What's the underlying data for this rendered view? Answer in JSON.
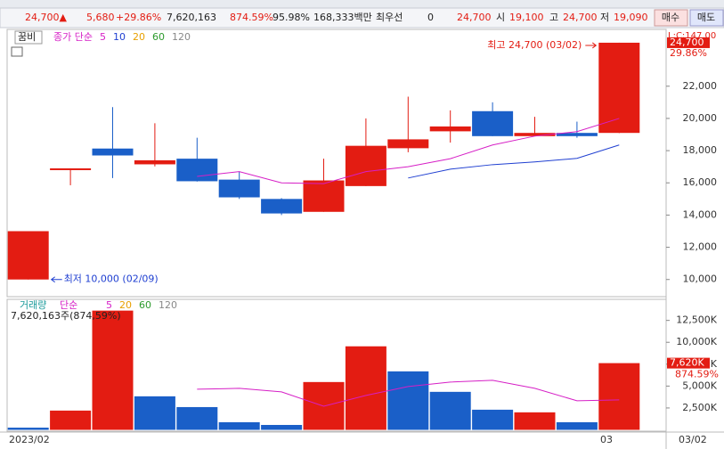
{
  "quote": {
    "price": "24,700▲",
    "change": "5,680",
    "change_pct": "+29.86%",
    "volume": "7,620,163",
    "volume_ratio": "874.59%",
    "turnover": "95.98%",
    "amount": "168,333백만",
    "best_label": "최우선",
    "best_value": "0",
    "best_price": "24,700",
    "open_label": "시",
    "open": "19,100",
    "high_label": "고",
    "high": "24,700",
    "low_label": "저",
    "low": "19,090",
    "buy": "매수",
    "sell": "매도"
  },
  "chart_data": [
    {
      "type": "candlestick",
      "name": "꿈비",
      "indicator": "종가 단순",
      "ma_periods": [
        "5",
        "10",
        "20",
        "60",
        "120"
      ],
      "ma_colors": [
        "#d61fc6",
        "#1f3fd1",
        "#e8a000",
        "#2c9a2c",
        "#888888"
      ],
      "up_color": "#e31c12",
      "down_color": "#1a5fc8",
      "open": [
        10000,
        16800,
        18130,
        17150,
        17500,
        16200,
        15000,
        14200,
        15800,
        18150,
        19200,
        20450,
        18900,
        19100,
        19100
      ],
      "high": [
        13000,
        16900,
        20700,
        19700,
        18800,
        16700,
        15050,
        17500,
        20000,
        21350,
        20500,
        21000,
        20100,
        19800,
        24700
      ],
      "low": [
        10000,
        15850,
        16300,
        17020,
        16080,
        15000,
        14000,
        14200,
        15800,
        17900,
        18500,
        18900,
        18900,
        18800,
        19090
      ],
      "close": [
        13000,
        16900,
        17700,
        17400,
        16100,
        15100,
        14100,
        16150,
        18300,
        18700,
        19500,
        18900,
        19100,
        18900,
        24700
      ],
      "ma_series": [
        {
          "name": "5",
          "color": "#d61fc6",
          "values": [
            null,
            null,
            null,
            null,
            16400,
            16700,
            16000,
            15950,
            16700,
            17000,
            17500,
            18350,
            18900,
            19180,
            20000
          ]
        },
        {
          "name": "10",
          "color": "#1f3fd1",
          "values": [
            null,
            null,
            null,
            null,
            null,
            null,
            null,
            null,
            null,
            16300,
            16850,
            17130,
            17300,
            17520,
            18350
          ]
        }
      ],
      "ylim": [
        9100,
        25250
      ],
      "yticks": [
        {
          "value": 10000,
          "label": "10,000"
        },
        {
          "value": 12000,
          "label": "12,000"
        },
        {
          "value": 14000,
          "label": "14,000"
        },
        {
          "value": 16000,
          "label": "16,000"
        },
        {
          "value": 18000,
          "label": "18,000"
        },
        {
          "value": 20000,
          "label": "20,000"
        },
        {
          "value": 22000,
          "label": "22,000"
        }
      ],
      "annotations": {
        "high": "최고 24,700 (03/02)",
        "low": "최저 10,000 (02/09)",
        "axis_top": "L:C:147.00",
        "last_price": "24,700",
        "last_pct": "29.86%"
      }
    },
    {
      "type": "bar",
      "name": "거래량",
      "indicator": "단순",
      "ma_periods": [
        "5",
        "20",
        "60",
        "120"
      ],
      "ma_colors": [
        "#d61fc6",
        "#e8a000",
        "#2c9a2c",
        "#888888"
      ],
      "summary": "7,620,163주(874,59%)",
      "values": [
        250,
        2200,
        13620,
        3830,
        2600,
        870,
        560,
        5460,
        9540,
        6680,
        4340,
        2300,
        2000,
        870,
        7620
      ],
      "colors": [
        "#1a5fc8",
        "#e31c12",
        "#e31c12",
        "#1a5fc8",
        "#1a5fc8",
        "#1a5fc8",
        "#1a5fc8",
        "#e31c12",
        "#e31c12",
        "#1a5fc8",
        "#1a5fc8",
        "#1a5fc8",
        "#e31c12",
        "#1a5fc8",
        "#e31c12"
      ],
      "ma_series": [
        {
          "name": "5",
          "color": "#d61fc6",
          "values": [
            null,
            null,
            null,
            null,
            4640,
            4740,
            4340,
            2700,
            3930,
            4950,
            5460,
            5660,
            4740,
            3320,
            3420
          ]
        }
      ],
      "ylim": [
        0,
        14500
      ],
      "yticks": [
        {
          "value": 2500,
          "label": "2,500K"
        },
        {
          "value": 5000,
          "label": "5,000K"
        },
        {
          "value": 7500,
          "label": "7,500K"
        },
        {
          "value": 10000,
          "label": "10,000K"
        },
        {
          "value": 12500,
          "label": "12,500K"
        }
      ],
      "annotations": {
        "last_volume": "7,620K",
        "last_pct": "874.59%"
      }
    }
  ],
  "x_axis": {
    "start": "2023/02",
    "month": "03",
    "last_date": "03/02"
  }
}
